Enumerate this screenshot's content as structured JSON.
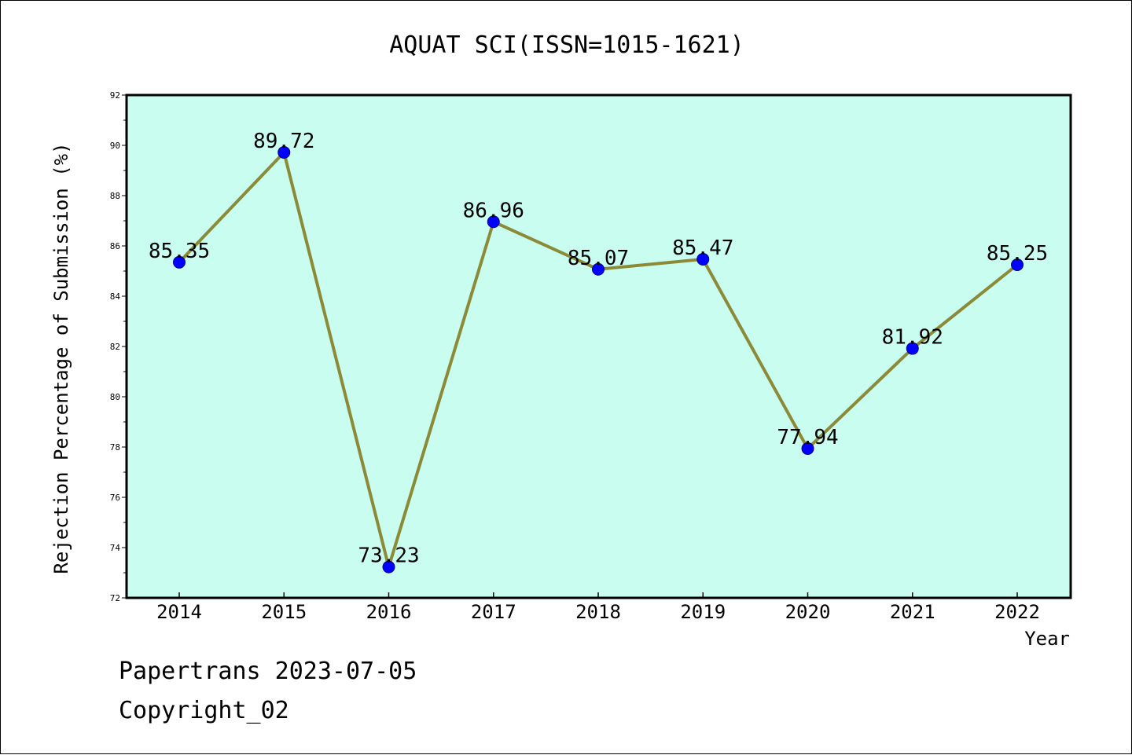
{
  "chart_data": {
    "type": "line",
    "title": "AQUAT SCI(ISSN=1015-1621)",
    "xlabel": "Year",
    "ylabel": "Rejection Percentage of Submission (%)",
    "categories": [
      "2014",
      "2015",
      "2016",
      "2017",
      "2018",
      "2019",
      "2020",
      "2021",
      "2022"
    ],
    "series": [
      {
        "values": [
          85.35,
          89.72,
          73.23,
          86.96,
          85.07,
          85.47,
          77.94,
          81.92,
          85.25
        ],
        "labels": [
          "85.35",
          "89.72",
          "73.23",
          "86.96",
          "85.07",
          "85.47",
          "77.94",
          "81.92",
          "85.25"
        ]
      }
    ],
    "ylim": [
      72,
      92
    ],
    "yticks": [
      "72",
      "74",
      "76",
      "78",
      "80",
      "82",
      "84",
      "86",
      "88",
      "90",
      "92"
    ],
    "grid": false,
    "colors": {
      "plot_background": "#c8fdf0",
      "line": "#8b8a37",
      "marker": "#0000ff"
    }
  },
  "footer": {
    "line1": "Papertrans 2023-07-05",
    "line2": "Copyright_02"
  }
}
